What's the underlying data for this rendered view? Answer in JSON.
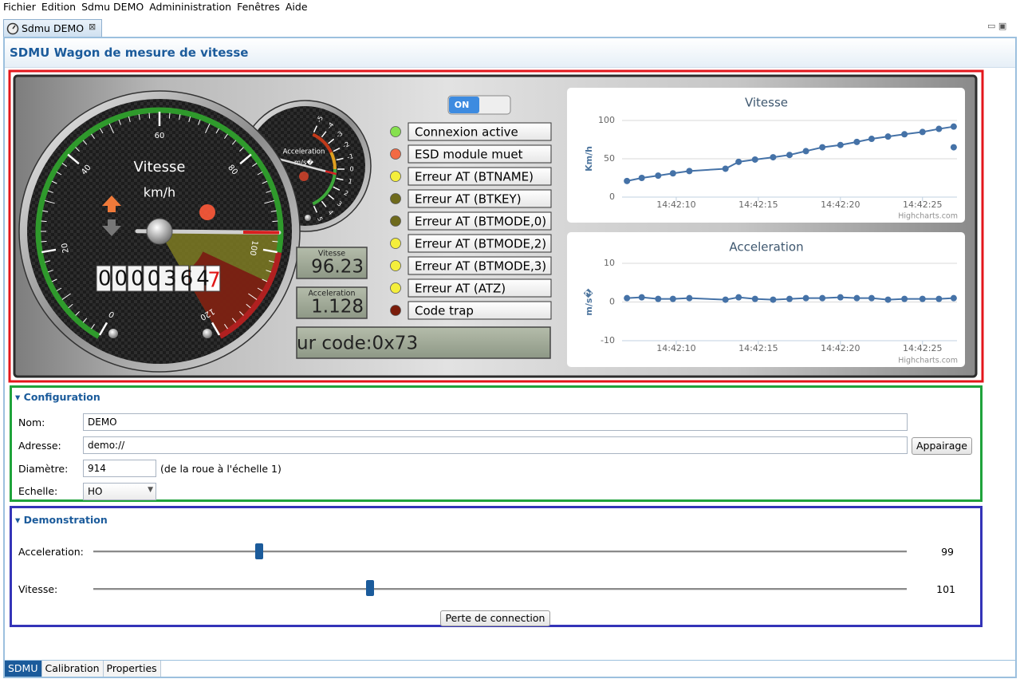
{
  "menu": [
    "Fichier",
    "Edition",
    "Sdmu DEMO",
    "Admininistration",
    "Fenêtres",
    "Aide"
  ],
  "editor_tab": "Sdmu DEMO",
  "header": {
    "title": "SDMU Wagon de mesure de vitesse"
  },
  "speed_gauge": {
    "title": "Vitesse",
    "unit": "km/h",
    "lim": [
      0,
      120
    ],
    "ticks": [
      0,
      20,
      40,
      60,
      80,
      100,
      120
    ],
    "odometer": "0000364",
    "odometer_fraction": "7"
  },
  "accel_gauge": {
    "title": "Acceleration",
    "unit": "m/s�",
    "lim": [
      -5,
      5
    ],
    "ticks": [
      -5,
      -4,
      -3,
      -2,
      -1,
      0,
      1,
      2,
      3,
      4,
      5
    ]
  },
  "toggle": "ON",
  "speed": {
    "label": "Vitesse",
    "value": 96.23
  },
  "acceleration": {
    "label": "Acceleration",
    "value": 1.128
  },
  "message": "ur code:0x73",
  "indicators": [
    {
      "label": "Connexion active",
      "color": "#86e04e"
    },
    {
      "label": "ESD module muet",
      "color": "#f26a44"
    },
    {
      "label": "Erreur AT (BTNAME)",
      "color": "#f4ee3c"
    },
    {
      "label": "Erreur AT (BTKEY)",
      "color": "#6e6a1c"
    },
    {
      "label": "Erreur AT (BTMODE,0)",
      "color": "#6e6a1c"
    },
    {
      "label": "Erreur AT (BTMODE,2)",
      "color": "#f4ee3c"
    },
    {
      "label": "Erreur AT (BTMODE,3)",
      "color": "#f4ee3c"
    },
    {
      "label": "Erreur AT (ATZ)",
      "color": "#f4ee3c"
    },
    {
      "label": "Code trap",
      "color": "#7a1c0a"
    }
  ],
  "chart_data": [
    {
      "type": "line",
      "title": "Vitesse",
      "y_label": "Km/h",
      "credits": "Highcharts.com",
      "grid": true,
      "x": [
        7.0,
        7.9,
        8.9,
        9.8,
        10.8,
        13.0,
        13.8,
        14.8,
        15.9,
        16.9,
        17.9,
        18.9,
        20.0,
        21.0,
        21.9,
        22.9,
        23.9,
        25.0,
        26.0,
        26.9
      ],
      "series": [
        {
          "color": "#4572a7",
          "values": [
            21,
            25,
            28,
            31,
            34,
            37,
            46,
            49,
            52,
            55,
            60,
            65,
            68,
            72,
            76,
            79,
            82,
            85,
            89,
            92
          ]
        },
        {
          "color": "#4572a7",
          "values": [
            null,
            null,
            null,
            null,
            null,
            null,
            null,
            null,
            null,
            null,
            null,
            null,
            null,
            null,
            null,
            null,
            null,
            null,
            null,
            65
          ]
        }
      ],
      "xlim": [
        6.7,
        27.1
      ],
      "xticks": [
        {
          "value": 10,
          "label": "14:42:10"
        },
        {
          "value": 15,
          "label": "14:42:15"
        },
        {
          "value": 20,
          "label": "14:42:20"
        },
        {
          "value": 25,
          "label": "14:42:25"
        }
      ],
      "ylim": [
        0,
        100
      ],
      "yticks": [
        0,
        50,
        100
      ]
    },
    {
      "type": "line",
      "title": "Acceleration",
      "y_label": "m/s�",
      "credits": "Highcharts.com",
      "grid": true,
      "x": [
        7.0,
        7.9,
        8.9,
        9.8,
        10.8,
        13.0,
        13.8,
        14.8,
        15.9,
        16.9,
        17.9,
        18.9,
        20.0,
        21.0,
        21.9,
        22.9,
        23.9,
        25.0,
        26.0,
        26.9
      ],
      "series": [
        {
          "color": "#4572a7",
          "values": [
            1.0,
            1.2,
            0.8,
            0.8,
            1.0,
            0.6,
            1.2,
            0.8,
            0.6,
            0.8,
            1.0,
            1.0,
            1.2,
            1.0,
            1.0,
            0.6,
            0.8,
            0.8,
            0.8,
            1.0
          ]
        }
      ],
      "xlim": [
        6.7,
        27.1
      ],
      "xticks": [
        {
          "value": 10,
          "label": "14:42:10"
        },
        {
          "value": 15,
          "label": "14:42:15"
        },
        {
          "value": 20,
          "label": "14:42:20"
        },
        {
          "value": 25,
          "label": "14:42:25"
        }
      ],
      "ylim": [
        -10,
        10
      ],
      "yticks": [
        -10,
        0,
        10
      ]
    }
  ],
  "configuration": {
    "title": "Configuration",
    "fields": [
      {
        "label": "Nom:",
        "value": "DEMO"
      },
      {
        "label": "Adresse:",
        "value": "demo://",
        "button": "Appairage"
      },
      {
        "label": "Diamètre:",
        "value": "914",
        "note": "(de la roue à l'échelle 1)"
      },
      {
        "label": "Echelle:",
        "value": "HO"
      }
    ]
  },
  "demonstration": {
    "title": "Demonstration",
    "sliders": [
      {
        "label": "Acceleration:",
        "value": 99
      },
      {
        "label": "Vitesse:",
        "value": 101
      }
    ],
    "button": "Perte de connection"
  },
  "bottom_tabs": [
    "SDMU",
    "Calibration",
    "Properties"
  ]
}
